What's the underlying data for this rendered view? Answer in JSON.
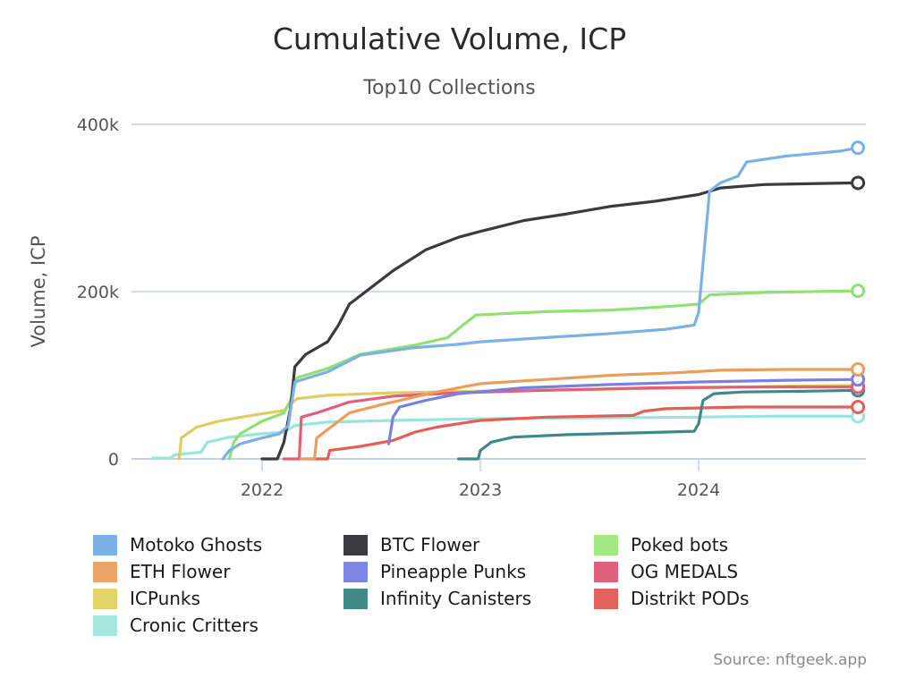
{
  "chart_data": {
    "type": "line",
    "title": "Cumulative Volume, ICP",
    "subtitle": "Top10 Collections",
    "xlabel": "",
    "ylabel": "Volume, ICP",
    "xlim": [
      2021.4,
      2024.76
    ],
    "ylim": [
      0,
      400000
    ],
    "x_ticks": [
      {
        "value": 2022,
        "label": "2022"
      },
      {
        "value": 2023,
        "label": "2023"
      },
      {
        "value": 2024,
        "label": "2024"
      }
    ],
    "y_ticks": [
      {
        "value": 0,
        "label": "0"
      },
      {
        "value": 200000,
        "label": "200k"
      },
      {
        "value": 400000,
        "label": "400k"
      }
    ],
    "grid": "horizontal",
    "legend_position": "bottom",
    "x_unit": "year (decimal)",
    "series": [
      {
        "name": "Motoko Ghosts",
        "color": "#7cb1e6",
        "points": [
          [
            2021.82,
            0
          ],
          [
            2021.85,
            10000
          ],
          [
            2021.9,
            18000
          ],
          [
            2022.0,
            25000
          ],
          [
            2022.08,
            30000
          ],
          [
            2022.12,
            40000
          ],
          [
            2022.15,
            92000
          ],
          [
            2022.3,
            104000
          ],
          [
            2022.45,
            124000
          ],
          [
            2022.7,
            133000
          ],
          [
            2022.9,
            137000
          ],
          [
            2023.0,
            140000
          ],
          [
            2023.3,
            145000
          ],
          [
            2023.6,
            150000
          ],
          [
            2023.85,
            155000
          ],
          [
            2023.98,
            160000
          ],
          [
            2024.0,
            175000
          ],
          [
            2024.05,
            320000
          ],
          [
            2024.1,
            330000
          ],
          [
            2024.18,
            338000
          ],
          [
            2024.22,
            355000
          ],
          [
            2024.4,
            362000
          ],
          [
            2024.65,
            368000
          ],
          [
            2024.73,
            372000
          ]
        ]
      },
      {
        "name": "BTC Flower",
        "color": "#3a3a3f",
        "points": [
          [
            2022.0,
            0
          ],
          [
            2022.07,
            0
          ],
          [
            2022.1,
            20000
          ],
          [
            2022.13,
            60000
          ],
          [
            2022.15,
            110000
          ],
          [
            2022.2,
            125000
          ],
          [
            2022.3,
            140000
          ],
          [
            2022.35,
            160000
          ],
          [
            2022.4,
            185000
          ],
          [
            2022.5,
            205000
          ],
          [
            2022.6,
            225000
          ],
          [
            2022.75,
            250000
          ],
          [
            2022.9,
            265000
          ],
          [
            2023.0,
            272000
          ],
          [
            2023.2,
            285000
          ],
          [
            2023.4,
            293000
          ],
          [
            2023.6,
            302000
          ],
          [
            2023.8,
            308000
          ],
          [
            2024.0,
            316000
          ],
          [
            2024.1,
            324000
          ],
          [
            2024.3,
            328000
          ],
          [
            2024.5,
            329000
          ],
          [
            2024.73,
            330000
          ]
        ]
      },
      {
        "name": "Poked bots",
        "color": "#90e073",
        "points": [
          [
            2021.85,
            0
          ],
          [
            2021.87,
            20000
          ],
          [
            2021.9,
            30000
          ],
          [
            2022.0,
            45000
          ],
          [
            2022.1,
            55000
          ],
          [
            2022.13,
            70000
          ],
          [
            2022.16,
            97000
          ],
          [
            2022.3,
            108000
          ],
          [
            2022.45,
            125000
          ],
          [
            2022.7,
            136000
          ],
          [
            2022.85,
            145000
          ],
          [
            2022.92,
            160000
          ],
          [
            2022.98,
            172000
          ],
          [
            2023.3,
            176000
          ],
          [
            2023.6,
            178000
          ],
          [
            2023.85,
            182000
          ],
          [
            2024.0,
            185000
          ],
          [
            2024.05,
            196000
          ],
          [
            2024.3,
            199000
          ],
          [
            2024.73,
            201000
          ]
        ]
      },
      {
        "name": "ETH Flower",
        "color": "#eb9d5c",
        "points": [
          [
            2022.18,
            0
          ],
          [
            2022.24,
            0
          ],
          [
            2022.25,
            25000
          ],
          [
            2022.3,
            35000
          ],
          [
            2022.4,
            55000
          ],
          [
            2022.55,
            65000
          ],
          [
            2022.8,
            80000
          ],
          [
            2023.0,
            90000
          ],
          [
            2023.3,
            95000
          ],
          [
            2023.6,
            100000
          ],
          [
            2023.9,
            103000
          ],
          [
            2024.1,
            106000
          ],
          [
            2024.4,
            107000
          ],
          [
            2024.73,
            107000
          ]
        ]
      },
      {
        "name": "Pineapple Punks",
        "color": "#7a7fe0",
        "points": [
          [
            2022.58,
            18000
          ],
          [
            2022.6,
            50000
          ],
          [
            2022.63,
            62000
          ],
          [
            2022.75,
            70000
          ],
          [
            2022.9,
            78000
          ],
          [
            2023.2,
            85000
          ],
          [
            2023.6,
            89000
          ],
          [
            2024.0,
            92000
          ],
          [
            2024.4,
            94000
          ],
          [
            2024.73,
            95000
          ]
        ]
      },
      {
        "name": "OG MEDALS",
        "color": "#e0607a",
        "points": [
          [
            2022.1,
            0
          ],
          [
            2022.17,
            0
          ],
          [
            2022.18,
            50000
          ],
          [
            2022.25,
            55000
          ],
          [
            2022.4,
            68000
          ],
          [
            2022.6,
            75000
          ],
          [
            2022.9,
            79000
          ],
          [
            2023.3,
            82000
          ],
          [
            2023.8,
            85000
          ],
          [
            2024.3,
            86000
          ],
          [
            2024.73,
            86000
          ]
        ]
      },
      {
        "name": "ICPunks",
        "color": "#e0cc60",
        "points": [
          [
            2021.62,
            0
          ],
          [
            2021.63,
            25000
          ],
          [
            2021.7,
            38000
          ],
          [
            2021.8,
            45000
          ],
          [
            2021.95,
            52000
          ],
          [
            2022.1,
            58000
          ],
          [
            2022.16,
            72000
          ],
          [
            2022.3,
            76000
          ],
          [
            2022.6,
            79000
          ],
          [
            2023.0,
            81000
          ],
          [
            2023.5,
            83000
          ],
          [
            2024.0,
            85000
          ],
          [
            2024.4,
            87000
          ],
          [
            2024.73,
            88000
          ]
        ]
      },
      {
        "name": "Infinity Canisters",
        "color": "#3f8a87",
        "points": [
          [
            2022.9,
            0
          ],
          [
            2022.99,
            0
          ],
          [
            2023.0,
            10000
          ],
          [
            2023.05,
            20000
          ],
          [
            2023.15,
            26000
          ],
          [
            2023.4,
            29000
          ],
          [
            2023.7,
            31000
          ],
          [
            2023.98,
            33000
          ],
          [
            2024.0,
            42000
          ],
          [
            2024.02,
            70000
          ],
          [
            2024.07,
            78000
          ],
          [
            2024.2,
            80000
          ],
          [
            2024.5,
            81000
          ],
          [
            2024.73,
            82000
          ]
        ]
      },
      {
        "name": "Distrikt PODs",
        "color": "#e25e57",
        "points": [
          [
            2022.2,
            0
          ],
          [
            2022.3,
            0
          ],
          [
            2022.31,
            10000
          ],
          [
            2022.45,
            15000
          ],
          [
            2022.6,
            22000
          ],
          [
            2022.7,
            32000
          ],
          [
            2022.8,
            38000
          ],
          [
            2022.9,
            42000
          ],
          [
            2023.0,
            46000
          ],
          [
            2023.3,
            50000
          ],
          [
            2023.7,
            52000
          ],
          [
            2023.75,
            57000
          ],
          [
            2023.85,
            60000
          ],
          [
            2024.2,
            62000
          ],
          [
            2024.73,
            62000
          ]
        ]
      },
      {
        "name": "Cronic Critters",
        "color": "#99e5dc",
        "points": [
          [
            2021.5,
            1000
          ],
          [
            2021.58,
            1000
          ],
          [
            2021.6,
            5000
          ],
          [
            2021.72,
            8000
          ],
          [
            2021.75,
            20000
          ],
          [
            2021.85,
            26000
          ],
          [
            2022.0,
            30000
          ],
          [
            2022.1,
            32000
          ],
          [
            2022.15,
            40000
          ],
          [
            2022.3,
            44000
          ],
          [
            2022.6,
            46000
          ],
          [
            2023.0,
            48000
          ],
          [
            2023.5,
            49000
          ],
          [
            2024.0,
            50000
          ],
          [
            2024.3,
            51000
          ],
          [
            2024.73,
            51000
          ]
        ]
      }
    ]
  },
  "legend": {
    "items": [
      {
        "label": "Motoko Ghosts",
        "color": "#7cb1e6"
      },
      {
        "label": "BTC Flower",
        "color": "#3a3a3f"
      },
      {
        "label": "Poked bots",
        "color": "#a2e884"
      },
      {
        "label": "ETH Flower",
        "color": "#eba46a"
      },
      {
        "label": "Pineapple Punks",
        "color": "#7f85e2"
      },
      {
        "label": "OG MEDALS",
        "color": "#de607c"
      },
      {
        "label": "ICPunks",
        "color": "#e2d36a"
      },
      {
        "label": "Infinity Canisters",
        "color": "#428a87"
      },
      {
        "label": "Distrikt PODs",
        "color": "#e2625c"
      },
      {
        "label": "Cronic Critters",
        "color": "#a6e8e0"
      }
    ]
  },
  "source_credit": "Source: nftgeek.app"
}
